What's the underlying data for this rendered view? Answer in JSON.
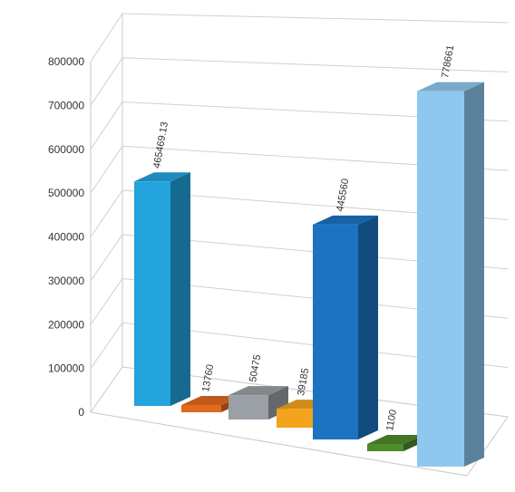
{
  "chart_data": {
    "type": "bar",
    "categories": [],
    "values": [
      465469.13,
      13760,
      50475,
      39185,
      445560,
      1100,
      778661
    ],
    "labels": [
      "465469.13",
      "13760",
      "50475",
      "39185",
      "445560",
      "1100",
      "778661"
    ],
    "colors": [
      "#22a3dc",
      "#e26a1f",
      "#9aa0a6",
      "#f4a31c",
      "#1b73c2",
      "#4f8a2c",
      "#8ec8ef"
    ],
    "ylim": [
      0,
      800000
    ],
    "yticks": [
      "0",
      "100000",
      "200000",
      "300000",
      "400000",
      "500000",
      "600000",
      "700000",
      "800000"
    ],
    "grid": true,
    "legend": "none",
    "title": "",
    "xlabel": "",
    "ylabel": ""
  }
}
